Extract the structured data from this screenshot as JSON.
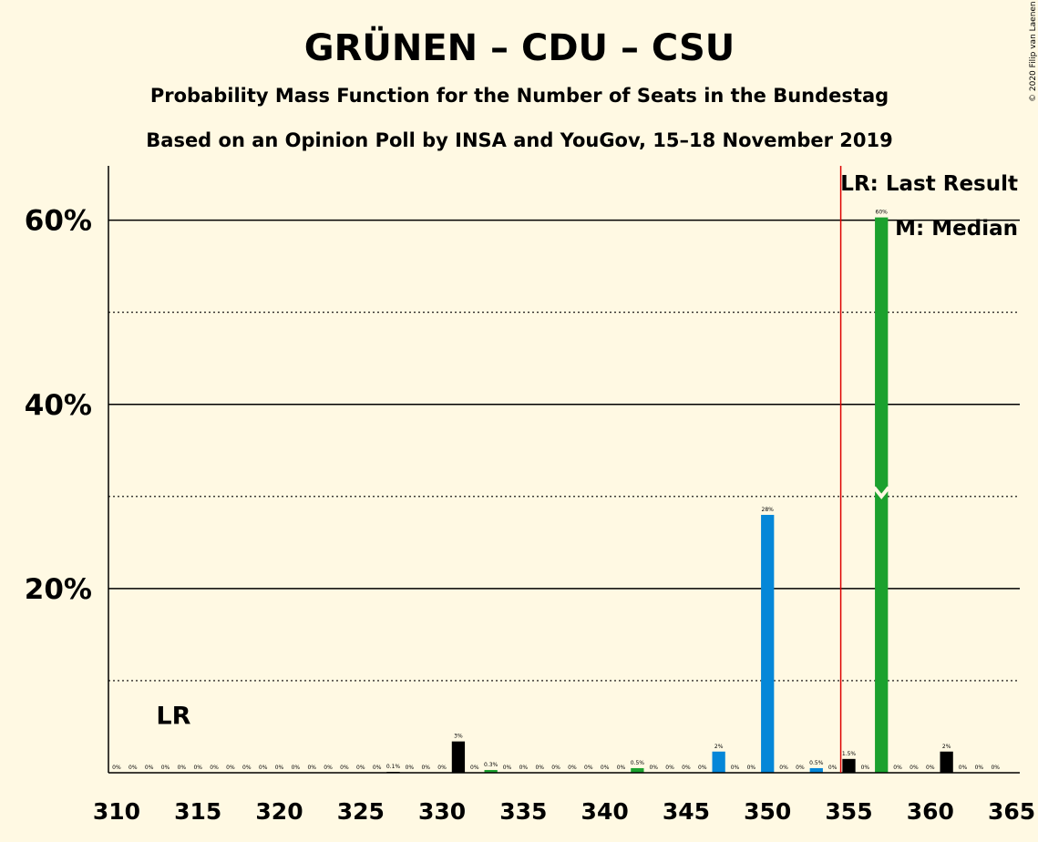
{
  "chart_data": {
    "type": "bar",
    "title": "GRÜNEN – CDU – CSU",
    "subtitle": "Probability Mass Function for the Number of Seats in the Bundestag",
    "subtitle2": "Based on an Opinion Poll by INSA and YouGov, 15–18 November 2019",
    "copyright": "© 2020 Filip van Laenen",
    "x": [
      310,
      311,
      312,
      313,
      314,
      315,
      316,
      317,
      318,
      319,
      320,
      321,
      322,
      323,
      324,
      325,
      326,
      327,
      328,
      329,
      330,
      331,
      332,
      333,
      334,
      335,
      336,
      337,
      338,
      339,
      340,
      341,
      342,
      343,
      344,
      345,
      346,
      347,
      348,
      349,
      350,
      351,
      352,
      353,
      354,
      355,
      356,
      357,
      358,
      359,
      360,
      361,
      362,
      363,
      364,
      365
    ],
    "values": [
      0,
      0,
      0,
      0,
      0,
      0,
      0,
      0,
      0,
      0,
      0,
      0,
      0,
      0,
      0,
      0,
      0,
      0.1,
      0,
      0,
      0,
      3.4,
      0,
      0.3,
      0,
      0,
      0,
      0,
      0,
      0,
      0,
      0,
      0.5,
      0,
      0,
      0,
      0,
      2.3,
      0,
      0,
      28.0,
      0,
      0,
      0.5,
      0,
      1.5,
      0,
      60.3,
      0,
      0,
      0,
      2.3,
      0,
      0,
      0,
      null
    ],
    "labels": [
      "0%",
      "0%",
      "0%",
      "0%",
      "0%",
      "0%",
      "0%",
      "0%",
      "0%",
      "0%",
      "0%",
      "0%",
      "0%",
      "0%",
      "0%",
      "0%",
      "0%",
      "0.1%",
      "0%",
      "0%",
      "0%",
      "3%",
      "0%",
      "0.3%",
      "0%",
      "0%",
      "0%",
      "0%",
      "0%",
      "0%",
      "0%",
      "0%",
      "0.5%",
      "0%",
      "0%",
      "0%",
      "0%",
      "2%",
      "0%",
      "0%",
      "28%",
      "0%",
      "0%",
      "0.5%",
      "0%",
      "1.5%",
      "0%",
      "60%",
      "0%",
      "0%",
      "0%",
      "2%",
      "0%",
      "0%",
      "0%",
      ""
    ],
    "colors": [
      "#000000",
      "#000000",
      "#000000",
      "#000000",
      "#000000",
      "#000000",
      "#000000",
      "#000000",
      "#000000",
      "#000000",
      "#000000",
      "#000000",
      "#000000",
      "#000000",
      "#000000",
      "#000000",
      "#000000",
      "#000000",
      "#000000",
      "#000000",
      "#000000",
      "#000000",
      "#000000",
      "#1BA12E",
      "#000000",
      "#000000",
      "#000000",
      "#000000",
      "#000000",
      "#000000",
      "#000000",
      "#000000",
      "#1BA12E",
      "#000000",
      "#000000",
      "#000000",
      "#000000",
      "#0587D8",
      "#000000",
      "#000000",
      "#0587D8",
      "#000000",
      "#000000",
      "#0587D8",
      "#000000",
      "#000000",
      "#000000",
      "#1BA12E",
      "#000000",
      "#000000",
      "#000000",
      "#000000",
      "#000000",
      "#000000",
      "#000000",
      "#000000"
    ],
    "xticks": [
      310,
      315,
      320,
      325,
      330,
      335,
      340,
      345,
      350,
      355,
      360,
      365
    ],
    "xtick_labels": [
      "310",
      "315",
      "320",
      "325",
      "330",
      "335",
      "340",
      "345",
      "350",
      "355",
      "360",
      "365"
    ],
    "yticks": [
      20,
      40,
      60
    ],
    "ytick_labels": [
      "20%",
      "40%",
      "60%"
    ],
    "ylim": [
      0,
      65.9
    ],
    "xlim": [
      309.5,
      365.5
    ],
    "grid_solid": [
      20,
      40,
      60
    ],
    "grid_dotted": [
      10,
      30,
      50
    ],
    "grid": true,
    "last_result_seat": 354.5,
    "median_seat": 357,
    "median_marker_value": 30,
    "lr_label_seat": 313.5,
    "lr_label_value": 6.3,
    "lr_label": "LR",
    "legend": {
      "last_result": "LR: Last Result",
      "median": "M: Median",
      "position": "top-right"
    },
    "accent_colors": {
      "blue": "#0587D8",
      "green": "#1BA12E",
      "last_result_line": "#DD0000"
    }
  }
}
